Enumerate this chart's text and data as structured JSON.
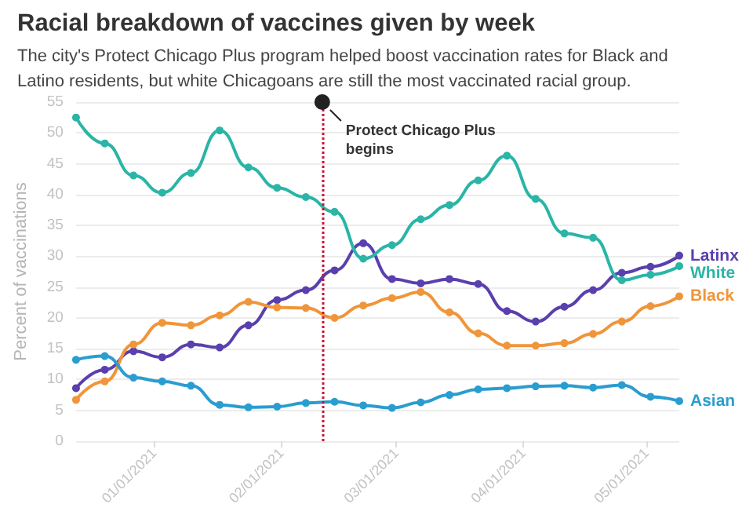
{
  "chart_data": {
    "type": "line",
    "title": "Racial breakdown of vaccines given by week",
    "subtitle": "The city's Protect Chicago Plus program helped boost vaccination rates for Black and Latino residents, but white Chicagoans are still the most vaccinated racial group.",
    "ylabel": "Percent of vaccinations",
    "x": [
      "2020-12-13",
      "2020-12-20",
      "2020-12-27",
      "2021-01-03",
      "2021-01-10",
      "2021-01-17",
      "2021-01-24",
      "2021-01-31",
      "2021-02-07",
      "2021-02-14",
      "2021-02-21",
      "2021-02-28",
      "2021-03-07",
      "2021-03-14",
      "2021-03-21",
      "2021-03-28",
      "2021-04-04",
      "2021-04-11",
      "2021-04-18",
      "2021-04-25",
      "2021-05-02",
      "2021-05-09"
    ],
    "series": [
      {
        "name": "Latinx",
        "color": "#5a3fae",
        "values": [
          8.6,
          11.6,
          14.6,
          13.6,
          15.7,
          15.2,
          18.8,
          22.9,
          24.5,
          27.7,
          32.1,
          26.3,
          25.6,
          26.3,
          25.5,
          21.1,
          19.4,
          21.8,
          24.5,
          27.3,
          28.3,
          30.1
        ]
      },
      {
        "name": "White",
        "color": "#2ab5a6",
        "values": [
          52.5,
          48.3,
          43.1,
          40.3,
          43.5,
          50.4,
          44.4,
          41.1,
          39.6,
          37.2,
          29.6,
          31.8,
          36.0,
          38.3,
          42.3,
          46.3,
          39.3,
          33.7,
          33.0,
          26.1,
          27.0,
          28.4
        ]
      },
      {
        "name": "Black",
        "color": "#f0953a",
        "values": [
          6.7,
          9.7,
          15.7,
          19.2,
          18.8,
          20.4,
          22.6,
          21.7,
          21.6,
          20.0,
          22.0,
          23.2,
          24.2,
          20.9,
          17.5,
          15.5,
          15.5,
          15.9,
          17.4,
          19.4,
          21.9,
          23.5
        ]
      },
      {
        "name": "Asian",
        "color": "#2a9dd0",
        "values": [
          13.2,
          13.8,
          10.3,
          9.7,
          9.0,
          5.9,
          5.5,
          5.6,
          6.2,
          6.4,
          5.8,
          5.4,
          6.3,
          7.5,
          8.4,
          8.6,
          8.9,
          9.0,
          8.7,
          9.1,
          7.2,
          6.5
        ]
      }
    ],
    "xlim": [
      "2020-12-13",
      "2021-05-09"
    ],
    "xticks": [
      {
        "value": "2021-01-01",
        "label": "01/01/2021"
      },
      {
        "value": "2021-02-01",
        "label": "02/01/2021"
      },
      {
        "value": "2021-03-01",
        "label": "03/01/2021"
      },
      {
        "value": "2021-04-01",
        "label": "04/01/2021"
      },
      {
        "value": "2021-05-01",
        "label": "05/01/2021"
      }
    ],
    "ylim": [
      0,
      55
    ],
    "yticks": [
      0,
      5,
      10,
      15,
      20,
      25,
      30,
      35,
      40,
      45,
      50,
      55
    ],
    "grid": "y",
    "marker": "circle",
    "line_style": "solid",
    "ref_lines": [
      {
        "axis": "x",
        "value": "2021-02-11",
        "label": "Protect Chicago Plus begins",
        "color": "#cc1133",
        "line_style": "dotted"
      }
    ]
  }
}
